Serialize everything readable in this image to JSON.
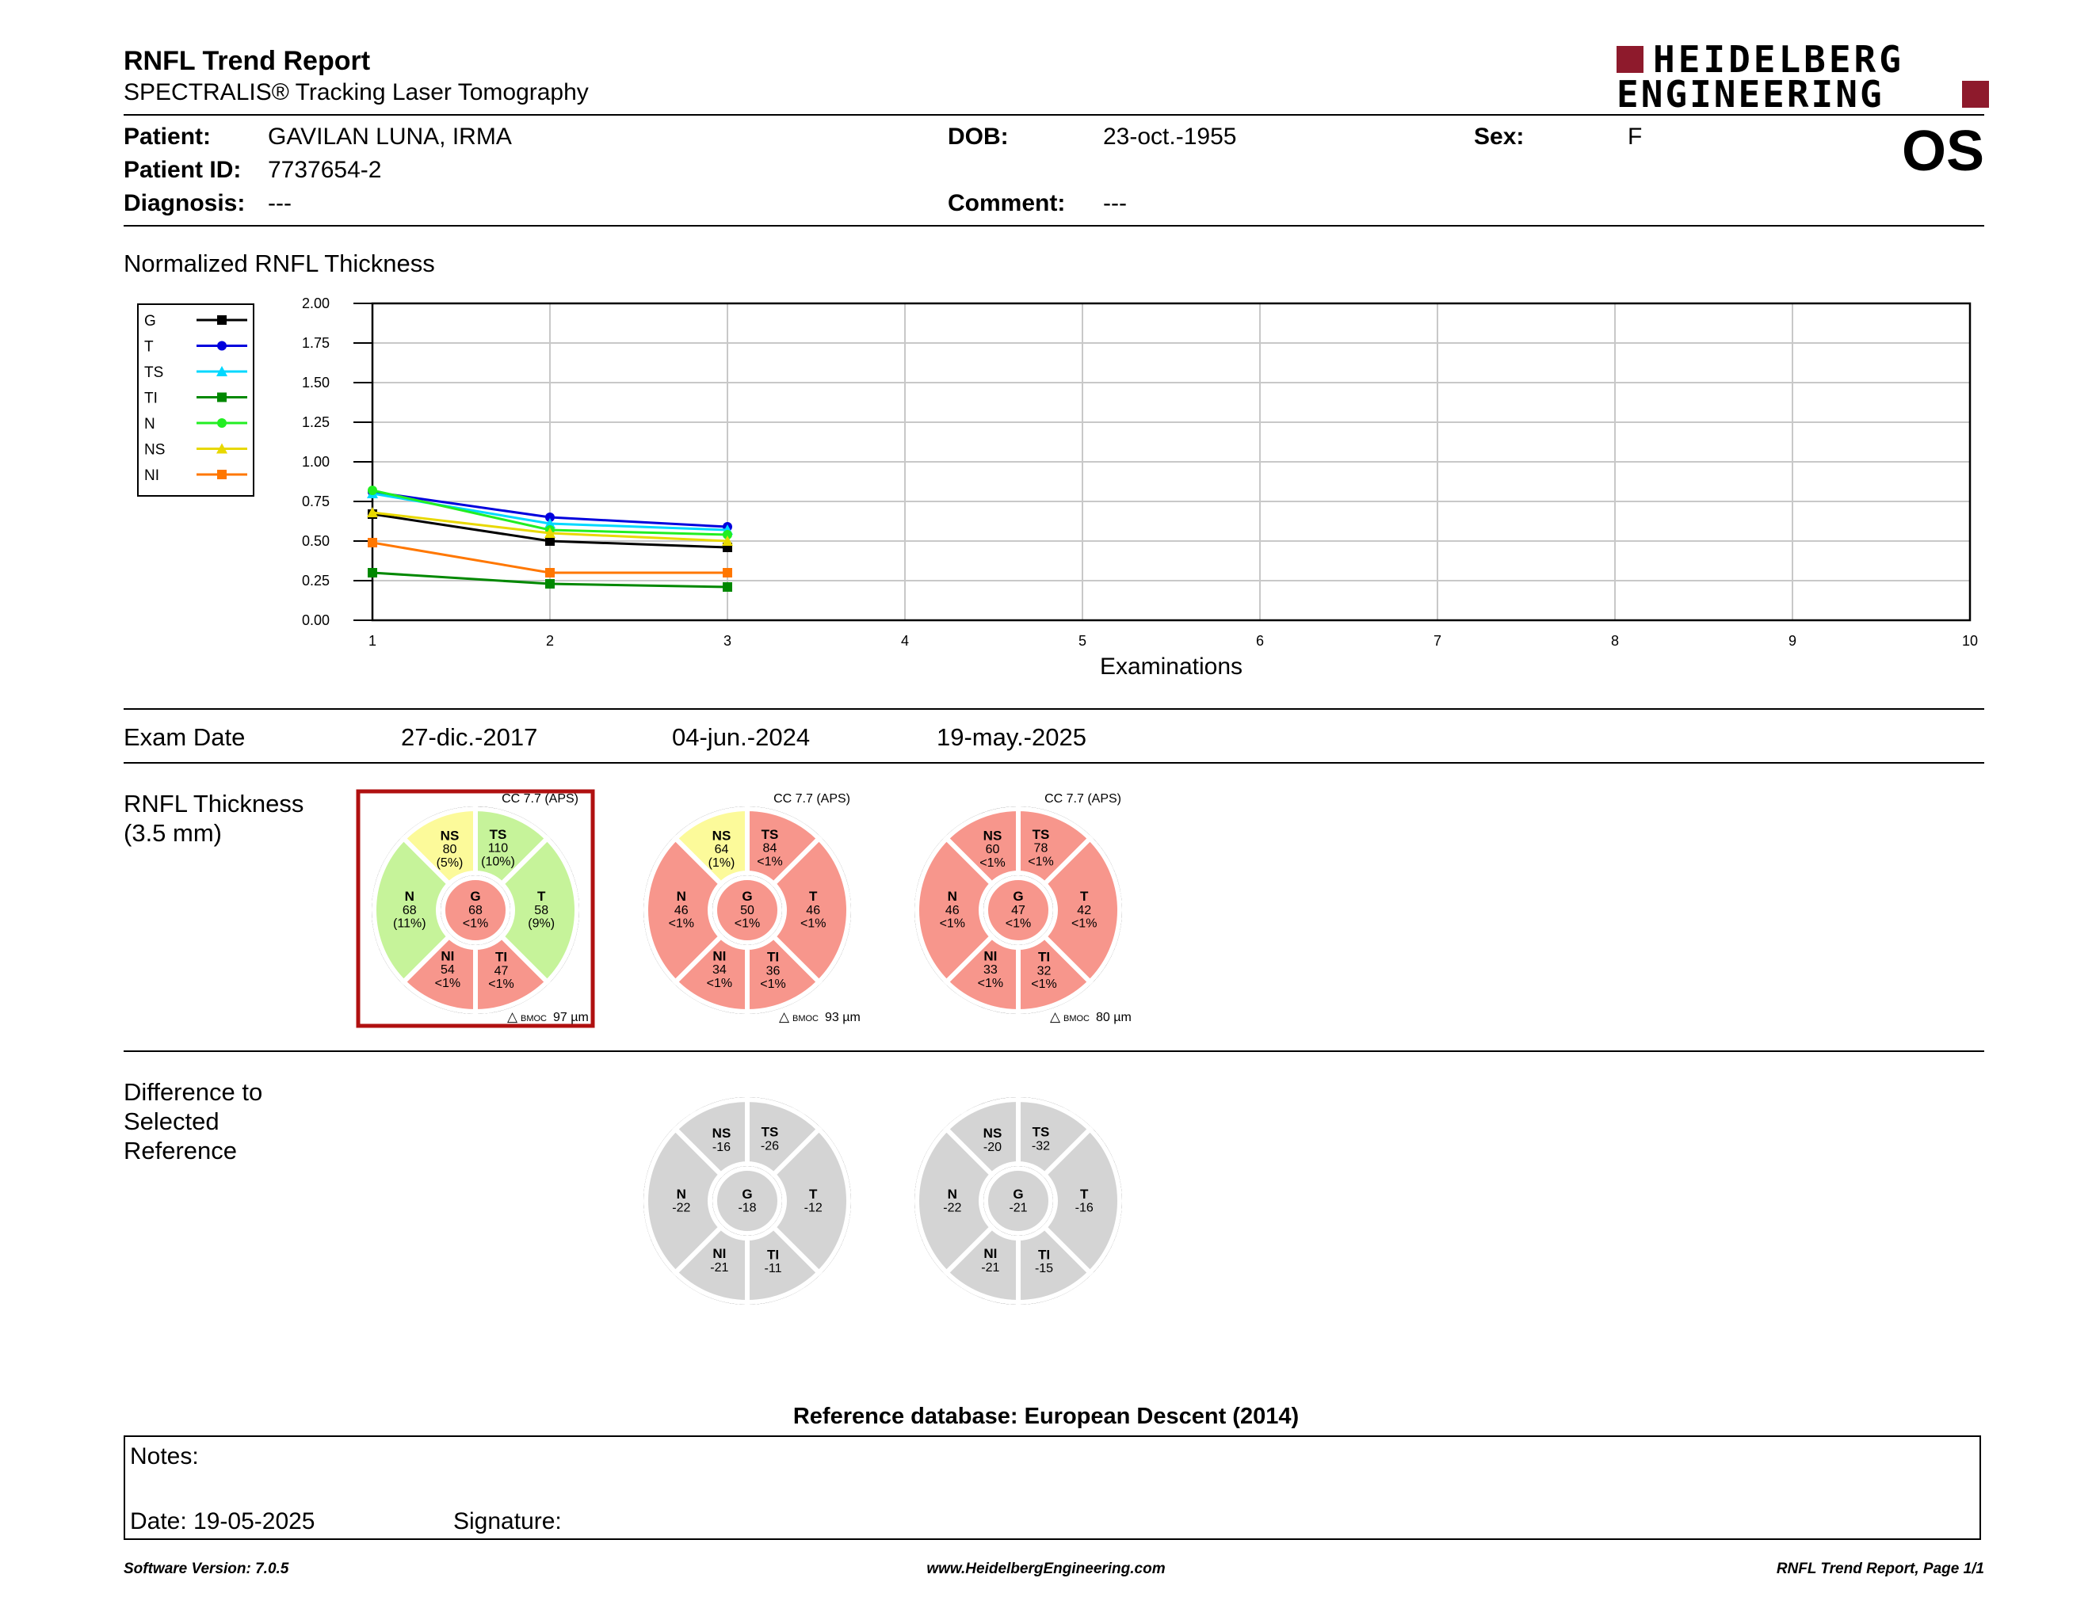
{
  "header": {
    "title": "RNFL Trend Report",
    "subtitle": "SPECTRALIS® Tracking Laser Tomography",
    "logo_line1": "HEIDELBERG",
    "logo_line2": "ENGINEERING",
    "eye": "OS"
  },
  "patient": {
    "name_label": "Patient:",
    "name": "GAVILAN LUNA, IRMA",
    "id_label": "Patient ID:",
    "id": "7737654-2",
    "diagnosis_label": "Diagnosis:",
    "diagnosis": "---",
    "dob_label": "DOB:",
    "dob": "23-oct.-1955",
    "comment_label": "Comment:",
    "comment": "---",
    "sex_label": "Sex:",
    "sex": "F"
  },
  "chart_section_title": "Normalized RNFL Thickness",
  "chart_data": {
    "type": "line",
    "xlabel": "Examinations",
    "ylabel": "",
    "x": [
      1,
      2,
      3
    ],
    "xlim": [
      1,
      10
    ],
    "ylim": [
      0,
      2
    ],
    "x_ticks": [
      "1",
      "2",
      "3",
      "4",
      "5",
      "6",
      "7",
      "8",
      "9",
      "10"
    ],
    "y_ticks": [
      "0.00",
      "0.25",
      "0.50",
      "0.75",
      "1.00",
      "1.25",
      "1.50",
      "1.75",
      "2.00"
    ],
    "grid": true,
    "legend_position": "left",
    "series": [
      {
        "name": "G",
        "color": "#000000",
        "marker": "square",
        "values": [
          0.67,
          0.5,
          0.46
        ]
      },
      {
        "name": "T",
        "color": "#0000dd",
        "marker": "circle",
        "values": [
          0.81,
          0.65,
          0.59
        ]
      },
      {
        "name": "TS",
        "color": "#00d8ff",
        "marker": "triangle",
        "values": [
          0.8,
          0.61,
          0.57
        ]
      },
      {
        "name": "TI",
        "color": "#008800",
        "marker": "square",
        "values": [
          0.3,
          0.23,
          0.21
        ]
      },
      {
        "name": "N",
        "color": "#22ee22",
        "marker": "circle",
        "values": [
          0.82,
          0.57,
          0.54
        ]
      },
      {
        "name": "NS",
        "color": "#e8d800",
        "marker": "triangle",
        "values": [
          0.68,
          0.55,
          0.5
        ]
      },
      {
        "name": "NI",
        "color": "#ff7700",
        "marker": "square",
        "values": [
          0.49,
          0.3,
          0.3
        ]
      }
    ]
  },
  "exam_date_label": "Exam Date",
  "exam_dates": [
    "27-dic.-2017",
    "04-jun.-2024",
    "19-may.-2025"
  ],
  "thickness_title_1": "RNFL Thickness",
  "thickness_title_2": "(3.5 mm)",
  "colors": {
    "normal": "#c6f39a",
    "borderline": "#fcfa9a",
    "outside": "#f7968c",
    "difference": "#d4d4d4",
    "selected_frame": "#b01010"
  },
  "thickness_charts": [
    {
      "cc": "CC 7.7 (APS)",
      "bmo_label": "BMOC",
      "bmo_value": "97 µm",
      "selected": true,
      "sectors": {
        "NS": {
          "label": "NS",
          "value": "80",
          "pct": "(5%)",
          "status": "borderline"
        },
        "TS": {
          "label": "TS",
          "value": "110",
          "pct": "(10%)",
          "status": "normal"
        },
        "T": {
          "label": "T",
          "value": "58",
          "pct": "(9%)",
          "status": "normal"
        },
        "TI": {
          "label": "TI",
          "value": "47",
          "pct": "<1%",
          "status": "outside"
        },
        "NI": {
          "label": "NI",
          "value": "54",
          "pct": "<1%",
          "status": "outside"
        },
        "N": {
          "label": "N",
          "value": "68",
          "pct": "(11%)",
          "status": "normal"
        },
        "G": {
          "label": "G",
          "value": "68",
          "pct": "<1%",
          "status": "outside"
        }
      }
    },
    {
      "cc": "CC 7.7 (APS)",
      "bmo_label": "BMOC",
      "bmo_value": "93 µm",
      "selected": false,
      "sectors": {
        "NS": {
          "label": "NS",
          "value": "64",
          "pct": "(1%)",
          "status": "borderline"
        },
        "TS": {
          "label": "TS",
          "value": "84",
          "pct": "<1%",
          "status": "outside"
        },
        "T": {
          "label": "T",
          "value": "46",
          "pct": "<1%",
          "status": "outside"
        },
        "TI": {
          "label": "TI",
          "value": "36",
          "pct": "<1%",
          "status": "outside"
        },
        "NI": {
          "label": "NI",
          "value": "34",
          "pct": "<1%",
          "status": "outside"
        },
        "N": {
          "label": "N",
          "value": "46",
          "pct": "<1%",
          "status": "outside"
        },
        "G": {
          "label": "G",
          "value": "50",
          "pct": "<1%",
          "status": "outside"
        }
      }
    },
    {
      "cc": "CC 7.7 (APS)",
      "bmo_label": "BMOC",
      "bmo_value": "80 µm",
      "selected": false,
      "sectors": {
        "NS": {
          "label": "NS",
          "value": "60",
          "pct": "<1%",
          "status": "outside"
        },
        "TS": {
          "label": "TS",
          "value": "78",
          "pct": "<1%",
          "status": "outside"
        },
        "T": {
          "label": "T",
          "value": "42",
          "pct": "<1%",
          "status": "outside"
        },
        "TI": {
          "label": "TI",
          "value": "32",
          "pct": "<1%",
          "status": "outside"
        },
        "NI": {
          "label": "NI",
          "value": "33",
          "pct": "<1%",
          "status": "outside"
        },
        "N": {
          "label": "N",
          "value": "46",
          "pct": "<1%",
          "status": "outside"
        },
        "G": {
          "label": "G",
          "value": "47",
          "pct": "<1%",
          "status": "outside"
        }
      }
    }
  ],
  "difference_title_1": "Difference to",
  "difference_title_2": "Selected",
  "difference_title_3": "Reference",
  "difference_charts": [
    {
      "sectors": {
        "NS": {
          "label": "NS",
          "value": "-16",
          "pct": "",
          "status": "difference"
        },
        "TS": {
          "label": "TS",
          "value": "-26",
          "pct": "",
          "status": "difference"
        },
        "T": {
          "label": "T",
          "value": "-12",
          "pct": "",
          "status": "difference"
        },
        "TI": {
          "label": "TI",
          "value": "-11",
          "pct": "",
          "status": "difference"
        },
        "NI": {
          "label": "NI",
          "value": "-21",
          "pct": "",
          "status": "difference"
        },
        "N": {
          "label": "N",
          "value": "-22",
          "pct": "",
          "status": "difference"
        },
        "G": {
          "label": "G",
          "value": "-18",
          "pct": "",
          "status": "difference"
        }
      }
    },
    {
      "sectors": {
        "NS": {
          "label": "NS",
          "value": "-20",
          "pct": "",
          "status": "difference"
        },
        "TS": {
          "label": "TS",
          "value": "-32",
          "pct": "",
          "status": "difference"
        },
        "T": {
          "label": "T",
          "value": "-16",
          "pct": "",
          "status": "difference"
        },
        "TI": {
          "label": "TI",
          "value": "-15",
          "pct": "",
          "status": "difference"
        },
        "NI": {
          "label": "NI",
          "value": "-21",
          "pct": "",
          "status": "difference"
        },
        "N": {
          "label": "N",
          "value": "-22",
          "pct": "",
          "status": "difference"
        },
        "G": {
          "label": "G",
          "value": "-21",
          "pct": "",
          "status": "difference"
        }
      }
    }
  ],
  "reference_db": "Reference database: European Descent (2014)",
  "notes": {
    "notes_label": "Notes:",
    "date_label": "Date: 19-05-2025",
    "signature_label": "Signature:"
  },
  "footer": {
    "left": "Software Version: 7.0.5",
    "center": "www.HeidelbergEngineering.com",
    "right": "RNFL Trend Report, Page 1/1"
  }
}
